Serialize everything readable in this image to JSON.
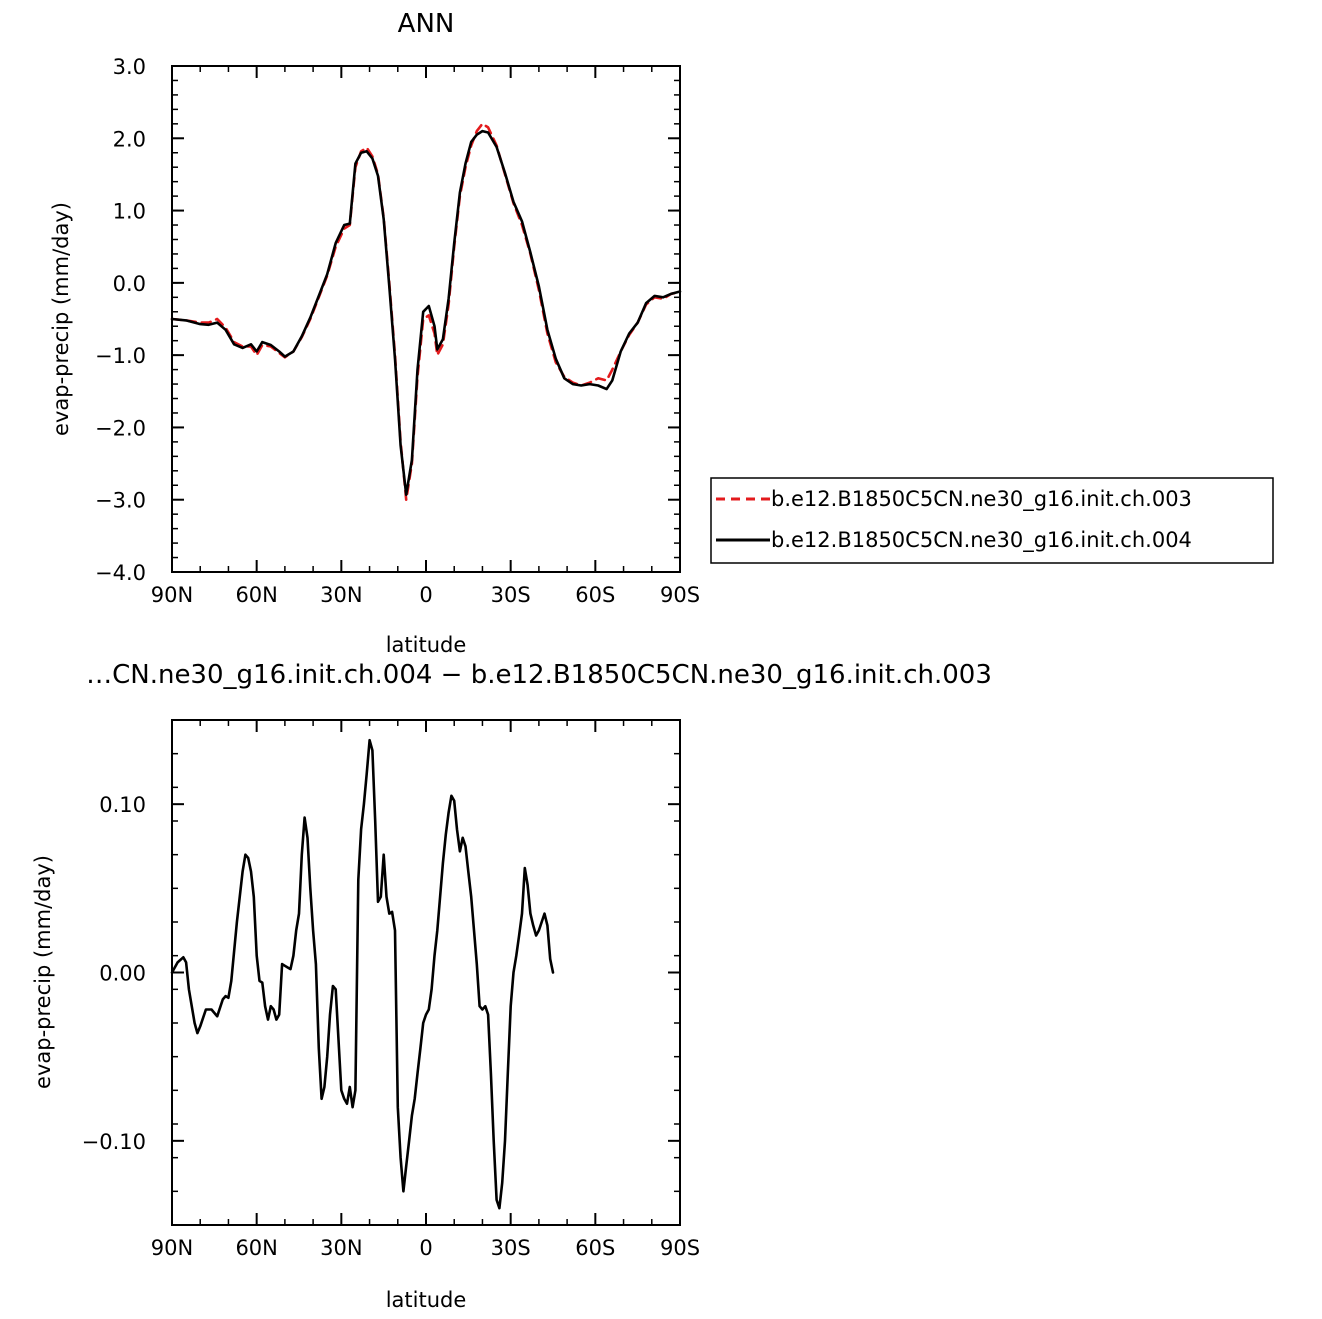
{
  "chart_data": [
    {
      "type": "line",
      "title": "ANN",
      "xlabel": "latitude",
      "ylabel": "evap-precip (mm/day)",
      "xlim": [
        90,
        -90
      ],
      "ylim": [
        -4.0,
        3.0
      ],
      "xticks": [
        90,
        60,
        30,
        0,
        -30,
        -60,
        -90
      ],
      "xticklabels": [
        "90N",
        "60N",
        "30N",
        "0",
        "30S",
        "60S",
        "90S"
      ],
      "yticks": [
        -4.0,
        -3.0,
        -2.0,
        -1.0,
        0.0,
        1.0,
        2.0,
        3.0
      ],
      "yticklabels": [
        "−4.0",
        "−3.0",
        "−2.0",
        "−1.0",
        "0.0",
        "1.0",
        "2.0",
        "3.0"
      ],
      "grid": false,
      "legend_position": "right",
      "series": [
        {
          "name": "b.e12.B1850C5CN.ne30_g16.init.ch.003",
          "color": "#e31a1c",
          "dash": "dashed",
          "points": [
            [
              90,
              -0.5
            ],
            [
              85,
              -0.52
            ],
            [
              80,
              -0.55
            ],
            [
              77,
              -0.55
            ],
            [
              74,
              -0.5
            ],
            [
              71,
              -0.62
            ],
            [
              68,
              -0.82
            ],
            [
              65,
              -0.88
            ],
            [
              62,
              -0.88
            ],
            [
              60,
              -1.0
            ],
            [
              58,
              -0.86
            ],
            [
              55,
              -0.88
            ],
            [
              52,
              -0.97
            ],
            [
              50,
              -1.03
            ],
            [
              47,
              -0.95
            ],
            [
              44,
              -0.75
            ],
            [
              41,
              -0.5
            ],
            [
              38,
              -0.2
            ],
            [
              35,
              0.1
            ],
            [
              32,
              0.5
            ],
            [
              29,
              0.75
            ],
            [
              27,
              0.8
            ],
            [
              25,
              1.6
            ],
            [
              23,
              1.82
            ],
            [
              21,
              1.87
            ],
            [
              19,
              1.75
            ],
            [
              17,
              1.5
            ],
            [
              15,
              0.9
            ],
            [
              13,
              0.0
            ],
            [
              11,
              -1.0
            ],
            [
              9,
              -2.2
            ],
            [
              7,
              -3.0
            ],
            [
              5,
              -2.5
            ],
            [
              3,
              -1.3
            ],
            [
              1,
              -0.5
            ],
            [
              -1,
              -0.45
            ],
            [
              -3,
              -0.7
            ],
            [
              -4,
              -1.0
            ],
            [
              -6,
              -0.85
            ],
            [
              -8,
              -0.3
            ],
            [
              -10,
              0.5
            ],
            [
              -12,
              1.2
            ],
            [
              -14,
              1.6
            ],
            [
              -16,
              1.9
            ],
            [
              -18,
              2.1
            ],
            [
              -20,
              2.2
            ],
            [
              -22,
              2.15
            ],
            [
              -25,
              1.9
            ],
            [
              -28,
              1.5
            ],
            [
              -31,
              1.1
            ],
            [
              -34,
              0.8
            ],
            [
              -37,
              0.4
            ],
            [
              -40,
              -0.1
            ],
            [
              -43,
              -0.7
            ],
            [
              -46,
              -1.1
            ],
            [
              -49,
              -1.3
            ],
            [
              -52,
              -1.38
            ],
            [
              -55,
              -1.42
            ],
            [
              -58,
              -1.38
            ],
            [
              -61,
              -1.32
            ],
            [
              -64,
              -1.35
            ],
            [
              -66,
              -1.2
            ],
            [
              -69,
              -0.95
            ],
            [
              -72,
              -0.72
            ],
            [
              -75,
              -0.55
            ],
            [
              -78,
              -0.3
            ],
            [
              -81,
              -0.2
            ],
            [
              -84,
              -0.22
            ],
            [
              -87,
              -0.15
            ],
            [
              -90,
              -0.13
            ]
          ]
        },
        {
          "name": "b.e12.B1850C5CN.ne30_g16.init.ch.004",
          "color": "#000000",
          "dash": "solid",
          "points": [
            [
              90,
              -0.5
            ],
            [
              85,
              -0.52
            ],
            [
              80,
              -0.57
            ],
            [
              77,
              -0.58
            ],
            [
              74,
              -0.55
            ],
            [
              71,
              -0.65
            ],
            [
              68,
              -0.85
            ],
            [
              65,
              -0.9
            ],
            [
              62,
              -0.85
            ],
            [
              60,
              -0.95
            ],
            [
              58,
              -0.82
            ],
            [
              55,
              -0.86
            ],
            [
              52,
              -0.95
            ],
            [
              50,
              -1.02
            ],
            [
              47,
              -0.95
            ],
            [
              44,
              -0.74
            ],
            [
              41,
              -0.48
            ],
            [
              38,
              -0.18
            ],
            [
              35,
              0.12
            ],
            [
              32,
              0.55
            ],
            [
              29,
              0.8
            ],
            [
              27,
              0.82
            ],
            [
              25,
              1.65
            ],
            [
              23,
              1.8
            ],
            [
              21,
              1.82
            ],
            [
              19,
              1.72
            ],
            [
              17,
              1.48
            ],
            [
              15,
              0.88
            ],
            [
              13,
              -0.05
            ],
            [
              11,
              -1.05
            ],
            [
              9,
              -2.25
            ],
            [
              7,
              -2.93
            ],
            [
              5,
              -2.45
            ],
            [
              3,
              -1.2
            ],
            [
              1,
              -0.4
            ],
            [
              -1,
              -0.32
            ],
            [
              -3,
              -0.6
            ],
            [
              -4,
              -0.92
            ],
            [
              -6,
              -0.78
            ],
            [
              -8,
              -0.22
            ],
            [
              -10,
              0.55
            ],
            [
              -12,
              1.25
            ],
            [
              -14,
              1.65
            ],
            [
              -16,
              1.95
            ],
            [
              -18,
              2.05
            ],
            [
              -20,
              2.1
            ],
            [
              -22,
              2.08
            ],
            [
              -25,
              1.88
            ],
            [
              -28,
              1.52
            ],
            [
              -31,
              1.12
            ],
            [
              -34,
              0.85
            ],
            [
              -37,
              0.42
            ],
            [
              -40,
              -0.05
            ],
            [
              -43,
              -0.65
            ],
            [
              -46,
              -1.05
            ],
            [
              -49,
              -1.32
            ],
            [
              -52,
              -1.4
            ],
            [
              -55,
              -1.42
            ],
            [
              -58,
              -1.4
            ],
            [
              -61,
              -1.42
            ],
            [
              -64,
              -1.47
            ],
            [
              -66,
              -1.35
            ],
            [
              -69,
              -0.95
            ],
            [
              -72,
              -0.7
            ],
            [
              -75,
              -0.55
            ],
            [
              -78,
              -0.28
            ],
            [
              -81,
              -0.18
            ],
            [
              -84,
              -0.2
            ],
            [
              -87,
              -0.15
            ],
            [
              -90,
              -0.12
            ]
          ]
        }
      ]
    },
    {
      "type": "line",
      "title": "…CN.ne30_g16.init.ch.004 − b.e12.B1850C5CN.ne30_g16.init.ch.003",
      "xlabel": "latitude",
      "ylabel": "evap-precip (mm/day)",
      "xlim": [
        90,
        -90
      ],
      "ylim": [
        -0.15,
        0.15
      ],
      "xticks": [
        90,
        60,
        30,
        0,
        -30,
        -60,
        -90
      ],
      "xticklabels": [
        "90N",
        "60N",
        "30N",
        "0",
        "30S",
        "60S",
        "90S"
      ],
      "yticks": [
        -0.1,
        0.0,
        0.1
      ],
      "yticklabels": [
        "−0.10",
        "0.00",
        "0.10"
      ],
      "grid": false,
      "series": [
        {
          "color": "#000000",
          "dash": "solid",
          "points": [
            [
              90,
              0.0
            ],
            [
              88,
              0.006
            ],
            [
              86,
              0.009
            ],
            [
              85,
              0.006
            ],
            [
              84,
              -0.01
            ],
            [
              82,
              -0.03
            ],
            [
              81,
              -0.036
            ],
            [
              80,
              -0.032
            ],
            [
              78,
              -0.022
            ],
            [
              76,
              -0.022
            ],
            [
              74,
              -0.026
            ],
            [
              72,
              -0.016
            ],
            [
              71,
              -0.014
            ],
            [
              70,
              -0.015
            ],
            [
              69,
              -0.005
            ],
            [
              67,
              0.03
            ],
            [
              65,
              0.06
            ],
            [
              64,
              0.07
            ],
            [
              63,
              0.068
            ],
            [
              62,
              0.06
            ],
            [
              61,
              0.045
            ],
            [
              60,
              0.01
            ],
            [
              59,
              -0.005
            ],
            [
              58,
              -0.006
            ],
            [
              57,
              -0.02
            ],
            [
              56,
              -0.028
            ],
            [
              55,
              -0.02
            ],
            [
              54,
              -0.022
            ],
            [
              53,
              -0.028
            ],
            [
              52,
              -0.025
            ],
            [
              51,
              0.005
            ],
            [
              50,
              0.004
            ],
            [
              49,
              0.003
            ],
            [
              48,
              0.002
            ],
            [
              47,
              0.01
            ],
            [
              46,
              0.025
            ],
            [
              45,
              0.035
            ],
            [
              44,
              0.07
            ],
            [
              43,
              0.092
            ],
            [
              42,
              0.08
            ],
            [
              41,
              0.05
            ],
            [
              40,
              0.025
            ],
            [
              39,
              0.005
            ],
            [
              38,
              -0.045
            ],
            [
              37,
              -0.075
            ],
            [
              36,
              -0.068
            ],
            [
              35,
              -0.05
            ],
            [
              34,
              -0.025
            ],
            [
              33,
              -0.008
            ],
            [
              32,
              -0.01
            ],
            [
              31,
              -0.04
            ],
            [
              30,
              -0.07
            ],
            [
              29,
              -0.075
            ],
            [
              28,
              -0.078
            ],
            [
              27,
              -0.068
            ],
            [
              26,
              -0.08
            ],
            [
              25,
              -0.07
            ],
            [
              24,
              0.055
            ],
            [
              23,
              0.085
            ],
            [
              22,
              0.1
            ],
            [
              21,
              0.118
            ],
            [
              20,
              0.138
            ],
            [
              19,
              0.132
            ],
            [
              18,
              0.09
            ],
            [
              17,
              0.042
            ],
            [
              16,
              0.045
            ],
            [
              15,
              0.07
            ],
            [
              14,
              0.045
            ],
            [
              13,
              0.035
            ],
            [
              12,
              0.036
            ],
            [
              11,
              0.025
            ],
            [
              10,
              -0.08
            ],
            [
              9,
              -0.11
            ],
            [
              8,
              -0.13
            ],
            [
              7,
              -0.115
            ],
            [
              6,
              -0.1
            ],
            [
              5,
              -0.085
            ],
            [
              4,
              -0.075
            ],
            [
              3,
              -0.06
            ],
            [
              2,
              -0.045
            ],
            [
              1,
              -0.03
            ],
            [
              0,
              -0.025
            ],
            [
              -1,
              -0.022
            ],
            [
              -2,
              -0.01
            ],
            [
              -3,
              0.01
            ],
            [
              -4,
              0.025
            ],
            [
              -5,
              0.045
            ],
            [
              -6,
              0.065
            ],
            [
              -7,
              0.082
            ],
            [
              -8,
              0.095
            ],
            [
              -9,
              0.105
            ],
            [
              -10,
              0.102
            ],
            [
              -11,
              0.085
            ],
            [
              -12,
              0.072
            ],
            [
              -13,
              0.08
            ],
            [
              -14,
              0.075
            ],
            [
              -15,
              0.06
            ],
            [
              -16,
              0.045
            ],
            [
              -17,
              0.025
            ],
            [
              -18,
              0.005
            ],
            [
              -19,
              -0.02
            ],
            [
              -20,
              -0.022
            ],
            [
              -21,
              -0.02
            ],
            [
              -22,
              -0.025
            ],
            [
              -23,
              -0.06
            ],
            [
              -24,
              -0.1
            ],
            [
              -25,
              -0.135
            ],
            [
              -26,
              -0.14
            ],
            [
              -27,
              -0.125
            ],
            [
              -28,
              -0.1
            ],
            [
              -29,
              -0.06
            ],
            [
              -30,
              -0.02
            ],
            [
              -31,
              0.0
            ],
            [
              -32,
              0.01
            ],
            [
              -33,
              0.022
            ],
            [
              -34,
              0.035
            ],
            [
              -35,
              0.062
            ],
            [
              -36,
              0.052
            ],
            [
              -37,
              0.035
            ],
            [
              -38,
              0.028
            ],
            [
              -39,
              0.022
            ],
            [
              -40,
              0.025
            ],
            [
              -41,
              0.03
            ],
            [
              -42,
              0.035
            ],
            [
              -43,
              0.028
            ],
            [
              -44,
              0.008
            ],
            [
              -45,
              0.0
            ]
          ]
        }
      ]
    }
  ]
}
